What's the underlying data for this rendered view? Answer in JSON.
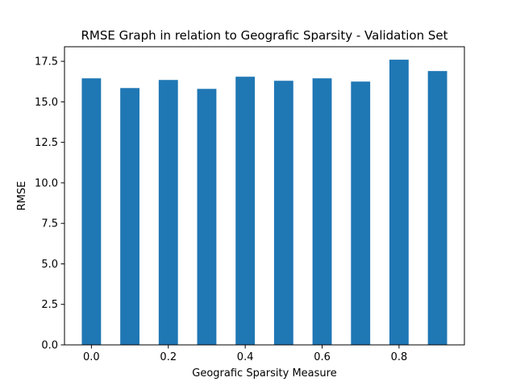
{
  "chart_data": {
    "type": "bar",
    "title": "RMSE Graph in relation to Geografic Sparsity - Validation Set",
    "xlabel": "Geografic Sparsity Measure",
    "ylabel": "RMSE",
    "x": [
      0.0,
      0.1,
      0.2,
      0.3,
      0.4,
      0.5,
      0.6,
      0.7,
      0.8,
      0.9
    ],
    "values": [
      16.45,
      15.85,
      16.35,
      15.8,
      16.55,
      16.3,
      16.45,
      16.25,
      17.6,
      16.9
    ],
    "bar_width": 0.05,
    "xlim": [
      -0.07,
      0.97
    ],
    "ylim": [
      0,
      18.4
    ],
    "xticks": [
      0.0,
      0.2,
      0.4,
      0.6,
      0.8
    ],
    "xtick_labels": [
      "0.0",
      "0.2",
      "0.4",
      "0.6",
      "0.8"
    ],
    "yticks": [
      0.0,
      2.5,
      5.0,
      7.5,
      10.0,
      12.5,
      15.0,
      17.5
    ],
    "ytick_labels": [
      "0.0",
      "2.5",
      "5.0",
      "7.5",
      "10.0",
      "12.5",
      "15.0",
      "17.5"
    ],
    "bar_color": "#1f77b4",
    "grid": false,
    "legend": "none"
  }
}
